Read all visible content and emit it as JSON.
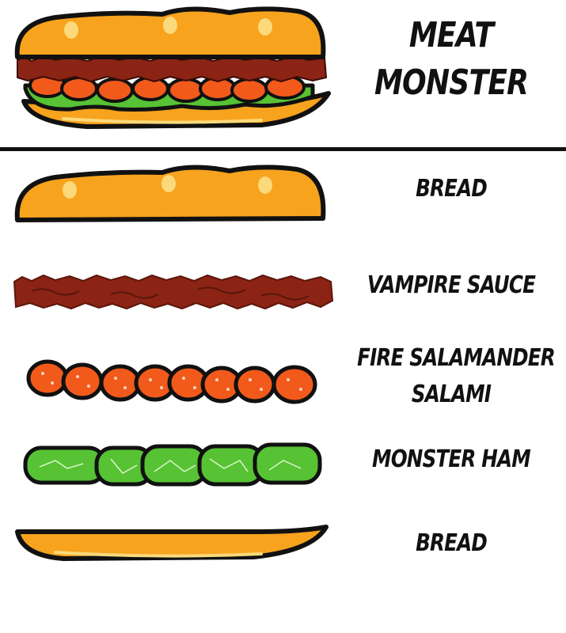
{
  "sandwich": {
    "name_line1": "Meat",
    "name_line2": "Monster"
  },
  "ingredients": [
    {
      "label": "Bread"
    },
    {
      "label": "Vampire Sauce"
    },
    {
      "label": "Fire Salamander",
      "label_line2": "Salami"
    },
    {
      "label": "Monster Ham"
    },
    {
      "label": "Bread"
    }
  ],
  "colors": {
    "bread": "#F7A31E",
    "bread_highlight": "#FCD97A",
    "sauce": "#8B2415",
    "salami": "#F25A1C",
    "ham": "#57C234",
    "outline": "#111111"
  }
}
